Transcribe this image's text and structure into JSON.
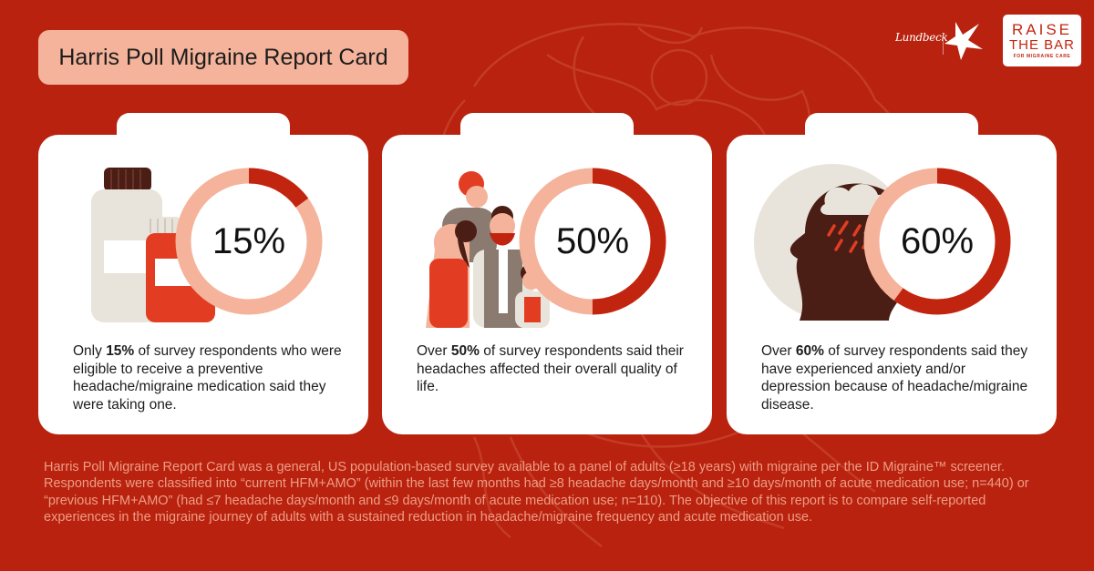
{
  "title": "Harris Poll Migraine Report Card",
  "logos": {
    "lundbeck": "Lundbeck",
    "raise_line1": "RAISE",
    "raise_line2": "THE BAR",
    "raise_line3": "FOR MIGRAINE CARE"
  },
  "colors": {
    "background": "#b8220e",
    "accent_light": "#f4b39a",
    "accent_dark": "#c2250f",
    "card": "#ffffff"
  },
  "cards": [
    {
      "percent_label": "15%",
      "percent_value": 15,
      "illustration": "medicine-bottles-icon",
      "text_before": "Only ",
      "text_bold": "15%",
      "text_after": " of survey respondents who were eligible to receive a preventive headache/migraine medication said they were taking one."
    },
    {
      "percent_label": "50%",
      "percent_value": 50,
      "illustration": "family-group-icon",
      "text_before": "Over ",
      "text_bold": "50%",
      "text_after": " of survey respondents said their headaches affected their overall quality of life."
    },
    {
      "percent_label": "60%",
      "percent_value": 60,
      "illustration": "head-storm-cloud-icon",
      "text_before": "Over ",
      "text_bold": "60%",
      "text_after": " of survey respondents said they have experienced anxiety and/or depression because of headache/migraine disease."
    }
  ],
  "footnote": "Harris Poll Migraine Report Card was a general, US population-based survey available to a panel of adults (≥18 years) with migraine per the ID Migraine™ screener. Respondents were classified into “current HFM+AMO” (within the last few months had ≥8 headache days/month and ≥10 days/month of acute medication use; n=440) or “previous HFM+AMO” (had ≤7 headache days/month and ≤9 days/month of acute medication use; n=110). The objective of this report is to compare self-reported experiences in the migraine journey of adults with a sustained reduction in headache/migraine frequency and acute medication use."
}
